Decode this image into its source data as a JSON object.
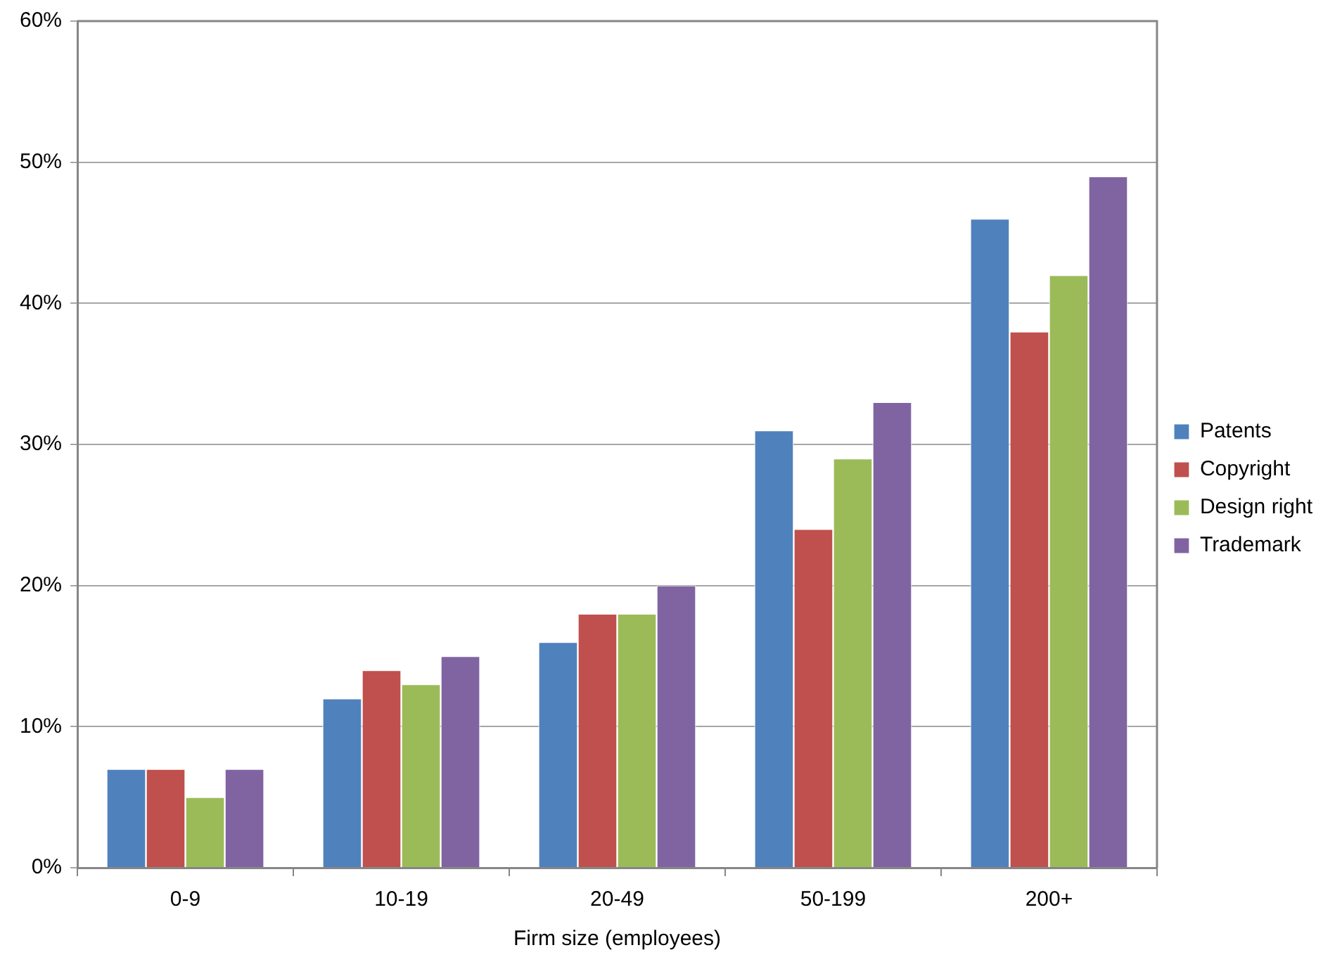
{
  "chart_data": {
    "type": "bar",
    "xlabel": "Firm size (employees)",
    "categories": [
      "0-9",
      "10-19",
      "20-49",
      "50-199",
      "200+"
    ],
    "series": [
      {
        "name": "Patents",
        "color": "#4f81bd",
        "values": [
          7,
          12,
          16,
          31,
          46
        ]
      },
      {
        "name": "Copyright",
        "color": "#c0504d",
        "values": [
          7,
          14,
          18,
          24,
          38
        ]
      },
      {
        "name": "Design right",
        "color": "#9bbb59",
        "values": [
          5,
          13,
          18,
          29,
          42
        ]
      },
      {
        "name": "Trademark",
        "color": "#8064a2",
        "values": [
          7,
          15,
          20,
          33,
          49
        ]
      }
    ],
    "ylim": [
      0,
      60
    ],
    "yticks": [
      {
        "value": 0,
        "label": "0%"
      },
      {
        "value": 10,
        "label": "10%"
      },
      {
        "value": 20,
        "label": "20%"
      },
      {
        "value": 30,
        "label": "30%"
      },
      {
        "value": 40,
        "label": "40%"
      },
      {
        "value": 50,
        "label": "50%"
      },
      {
        "value": 60,
        "label": "60%"
      }
    ],
    "grid": "y",
    "legend": "right"
  }
}
